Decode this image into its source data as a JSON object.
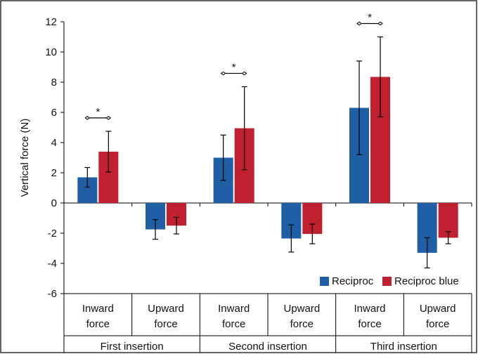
{
  "chart_data": {
    "type": "bar",
    "ylabel": "Vertical force (N)",
    "ylim": [
      -6,
      12
    ],
    "yticks": [
      12,
      10,
      8,
      6,
      4,
      2,
      0,
      -2,
      -4,
      -6
    ],
    "grid": false,
    "legend_position": "bottom-right",
    "categories": [
      {
        "label_line1": "Inward",
        "label_line2": "force",
        "group": "First insertion"
      },
      {
        "label_line1": "Upward",
        "label_line2": "force",
        "group": "First insertion"
      },
      {
        "label_line1": "Inward",
        "label_line2": "force",
        "group": "Second insertion"
      },
      {
        "label_line1": "Upward",
        "label_line2": "force",
        "group": "Second insertion"
      },
      {
        "label_line1": "Inward",
        "label_line2": "force",
        "group": "Third insertion"
      },
      {
        "label_line1": "Upward",
        "label_line2": "force",
        "group": "Third insertion"
      }
    ],
    "groups": [
      "First insertion",
      "Second insertion",
      "Third insertion"
    ],
    "series": [
      {
        "name": "Reciproc",
        "color": "#1f5fa6",
        "values": [
          1.7,
          -1.75,
          3.0,
          -2.35,
          6.3,
          -3.3
        ],
        "error": [
          0.65,
          0.65,
          1.5,
          0.9,
          3.1,
          1.0
        ]
      },
      {
        "name": "Reciproc blue",
        "color": "#c0202f",
        "values": [
          3.4,
          -1.5,
          4.95,
          -2.05,
          8.35,
          -2.3
        ],
        "error": [
          1.35,
          0.55,
          2.75,
          0.65,
          2.65,
          0.4
        ]
      }
    ],
    "significance": [
      {
        "category": 0,
        "label": "*"
      },
      {
        "category": 2,
        "label": "*"
      },
      {
        "category": 4,
        "label": "*"
      }
    ]
  }
}
